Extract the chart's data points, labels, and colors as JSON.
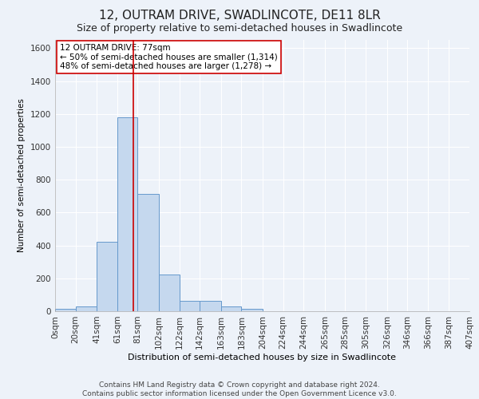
{
  "title": "12, OUTRAM DRIVE, SWADLINCOTE, DE11 8LR",
  "subtitle": "Size of property relative to semi-detached houses in Swadlincote",
  "xlabel": "Distribution of semi-detached houses by size in Swadlincote",
  "ylabel": "Number of semi-detached properties",
  "footnote": "Contains HM Land Registry data © Crown copyright and database right 2024.\nContains public sector information licensed under the Open Government Licence v3.0.",
  "bar_left_edges": [
    0,
    20,
    41,
    61,
    81,
    102,
    122,
    142,
    163,
    183,
    204,
    224,
    244,
    265,
    285,
    305,
    326,
    346,
    366,
    387
  ],
  "bar_heights": [
    15,
    30,
    420,
    1180,
    715,
    225,
    65,
    65,
    30,
    15,
    0,
    0,
    0,
    0,
    0,
    0,
    0,
    0,
    0,
    0
  ],
  "bar_widths": [
    20,
    21,
    20,
    20,
    21,
    20,
    20,
    21,
    20,
    21,
    20,
    20,
    21,
    20,
    20,
    21,
    20,
    20,
    21,
    20
  ],
  "bar_color": "#c5d8ee",
  "bar_edge_color": "#6699cc",
  "property_value": 77,
  "red_line_color": "#cc0000",
  "annotation_text": "12 OUTRAM DRIVE: 77sqm\n← 50% of semi-detached houses are smaller (1,314)\n48% of semi-detached houses are larger (1,278) →",
  "annotation_box_color": "#ffffff",
  "annotation_border_color": "#cc0000",
  "tick_labels": [
    "0sqm",
    "20sqm",
    "41sqm",
    "61sqm",
    "81sqm",
    "102sqm",
    "122sqm",
    "142sqm",
    "163sqm",
    "183sqm",
    "204sqm",
    "224sqm",
    "244sqm",
    "265sqm",
    "285sqm",
    "305sqm",
    "326sqm",
    "346sqm",
    "366sqm",
    "387sqm",
    "407sqm"
  ],
  "tick_positions": [
    0,
    20,
    41,
    61,
    81,
    102,
    122,
    142,
    163,
    183,
    204,
    224,
    244,
    265,
    285,
    305,
    326,
    346,
    366,
    387,
    407
  ],
  "ylim": [
    0,
    1650
  ],
  "yticks": [
    0,
    200,
    400,
    600,
    800,
    1000,
    1200,
    1400,
    1600
  ],
  "background_color": "#edf2f9",
  "grid_color": "#ffffff",
  "title_fontsize": 11,
  "subtitle_fontsize": 9,
  "axis_fontsize": 7.5,
  "annotation_fontsize": 7.5,
  "footnote_fontsize": 6.5,
  "xlabel_fontsize": 8,
  "ylabel_fontsize": 7.5
}
